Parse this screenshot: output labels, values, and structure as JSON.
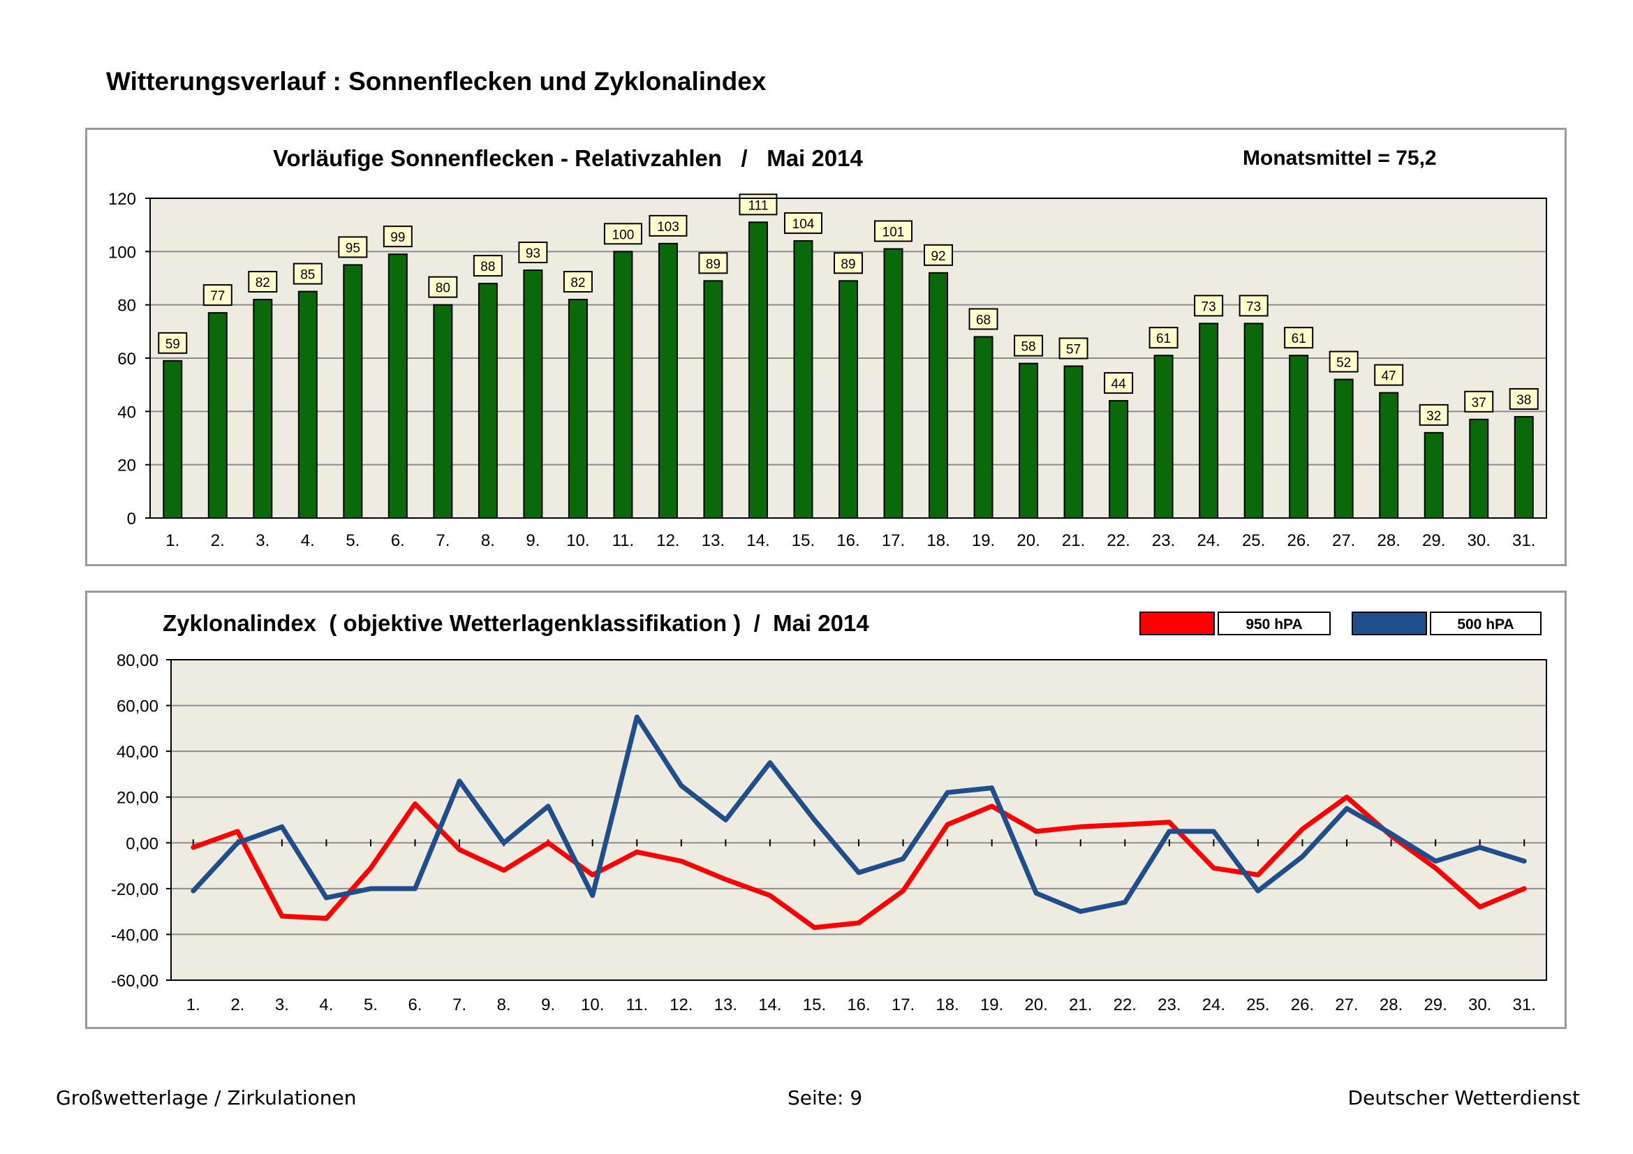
{
  "page": {
    "title": "Witterungsverlauf : Sonnenflecken und Zyklonalindex"
  },
  "footer": {
    "left": "Großwetterlage / Zirkulationen",
    "center": "Seite: 9",
    "right": "Deutscher Wetterdienst"
  },
  "colors": {
    "bar_fill": "#0a6a0a",
    "plot_background": "#eeece1",
    "monthly_mean_text": "#1a6a1a",
    "series_950": "#ff0000",
    "series_500": "#1f4e8c",
    "label_box": "#ffffcc"
  },
  "chart_data": [
    {
      "type": "bar",
      "title": "Vorläufige Sonnenflecken - Relativzahlen   /   Mai 2014",
      "annotation": "Monatsmittel = 75,2",
      "categories": [
        "1.",
        "2.",
        "3.",
        "4.",
        "5.",
        "6.",
        "7.",
        "8.",
        "9.",
        "10.",
        "11.",
        "12.",
        "13.",
        "14.",
        "15.",
        "16.",
        "17.",
        "18.",
        "19.",
        "20.",
        "21.",
        "22.",
        "23.",
        "24.",
        "25.",
        "26.",
        "27.",
        "28.",
        "29.",
        "30.",
        "31."
      ],
      "values": [
        59,
        77,
        82,
        85,
        95,
        99,
        80,
        88,
        93,
        82,
        100,
        103,
        89,
        111,
        104,
        89,
        101,
        92,
        68,
        58,
        57,
        44,
        61,
        73,
        73,
        61,
        52,
        47,
        32,
        37,
        38
      ],
      "ylim": [
        0,
        120
      ],
      "yticks": [
        "0",
        "20",
        "40",
        "60",
        "80",
        "100",
        "120"
      ],
      "grid": true,
      "data_labels": true
    },
    {
      "type": "line",
      "title": "Zyklonalindex  ( objektive Wetterlagenklassifikation )  /  Mai 2014",
      "categories": [
        "1.",
        "2.",
        "3.",
        "4.",
        "5.",
        "6.",
        "7.",
        "8.",
        "9.",
        "10.",
        "11.",
        "12.",
        "13.",
        "14.",
        "15.",
        "16.",
        "17.",
        "18.",
        "19.",
        "20.",
        "21.",
        "22.",
        "23.",
        "24.",
        "25.",
        "26.",
        "27.",
        "28.",
        "29.",
        "30.",
        "31."
      ],
      "ylim": [
        -60,
        80
      ],
      "yticks": [
        "-60,00",
        "-40,00",
        "-20,00",
        "0,00",
        "20,00",
        "40,00",
        "60,00",
        "80,00"
      ],
      "grid": true,
      "legend_position": "top-right",
      "series": [
        {
          "name": "950 hPA",
          "values": [
            -2,
            5,
            -32,
            -33,
            -11,
            17,
            -3,
            -12,
            0,
            -14,
            -4,
            -8,
            -16,
            -23,
            -37,
            -35,
            -21,
            8,
            16,
            5,
            7,
            8,
            9,
            -11,
            -14,
            6,
            20,
            3,
            -11,
            -28,
            -20
          ]
        },
        {
          "name": "500 hPA",
          "values": [
            -21,
            0,
            7,
            -24,
            -20,
            -20,
            27,
            0,
            16,
            -23,
            55,
            25,
            10,
            35,
            10,
            -13,
            -7,
            22,
            24,
            -22,
            -30,
            -26,
            5,
            5,
            -21,
            -6,
            15,
            4,
            -8,
            -2,
            -8
          ]
        }
      ]
    }
  ]
}
